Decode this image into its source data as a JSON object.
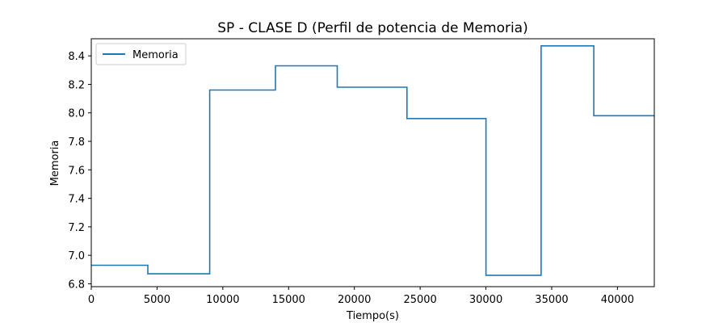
{
  "chart_data": {
    "type": "line",
    "title": "SP - CLASE D (Perfil de potencia de Memoria)",
    "xlabel": "Tiempo(s)",
    "ylabel": "Memoria",
    "xlim": [
      0,
      42800
    ],
    "ylim": [
      6.78,
      8.52
    ],
    "xticks": [
      0,
      5000,
      10000,
      15000,
      20000,
      25000,
      30000,
      35000,
      40000
    ],
    "yticks": [
      6.8,
      7.0,
      7.2,
      7.4,
      7.6,
      7.8,
      8.0,
      8.2,
      8.4
    ],
    "ytick_labels": [
      "6.8",
      "7.0",
      "7.2",
      "7.4",
      "7.6",
      "7.8",
      "8.0",
      "8.2",
      "8.4"
    ],
    "grid": false,
    "legend_position": "top-left",
    "line_style": "step",
    "color": "#1f77b4",
    "series": [
      {
        "name": "Memoria",
        "x": [
          0,
          4300,
          4300,
          9000,
          9000,
          14000,
          14000,
          18700,
          18700,
          24000,
          24000,
          30000,
          30000,
          34200,
          34200,
          38200,
          38200,
          42800
        ],
        "y": [
          6.93,
          6.93,
          6.87,
          6.87,
          8.16,
          8.16,
          8.33,
          8.33,
          8.18,
          8.18,
          7.96,
          7.96,
          6.86,
          6.86,
          8.47,
          8.47,
          7.98,
          7.98
        ]
      }
    ]
  }
}
